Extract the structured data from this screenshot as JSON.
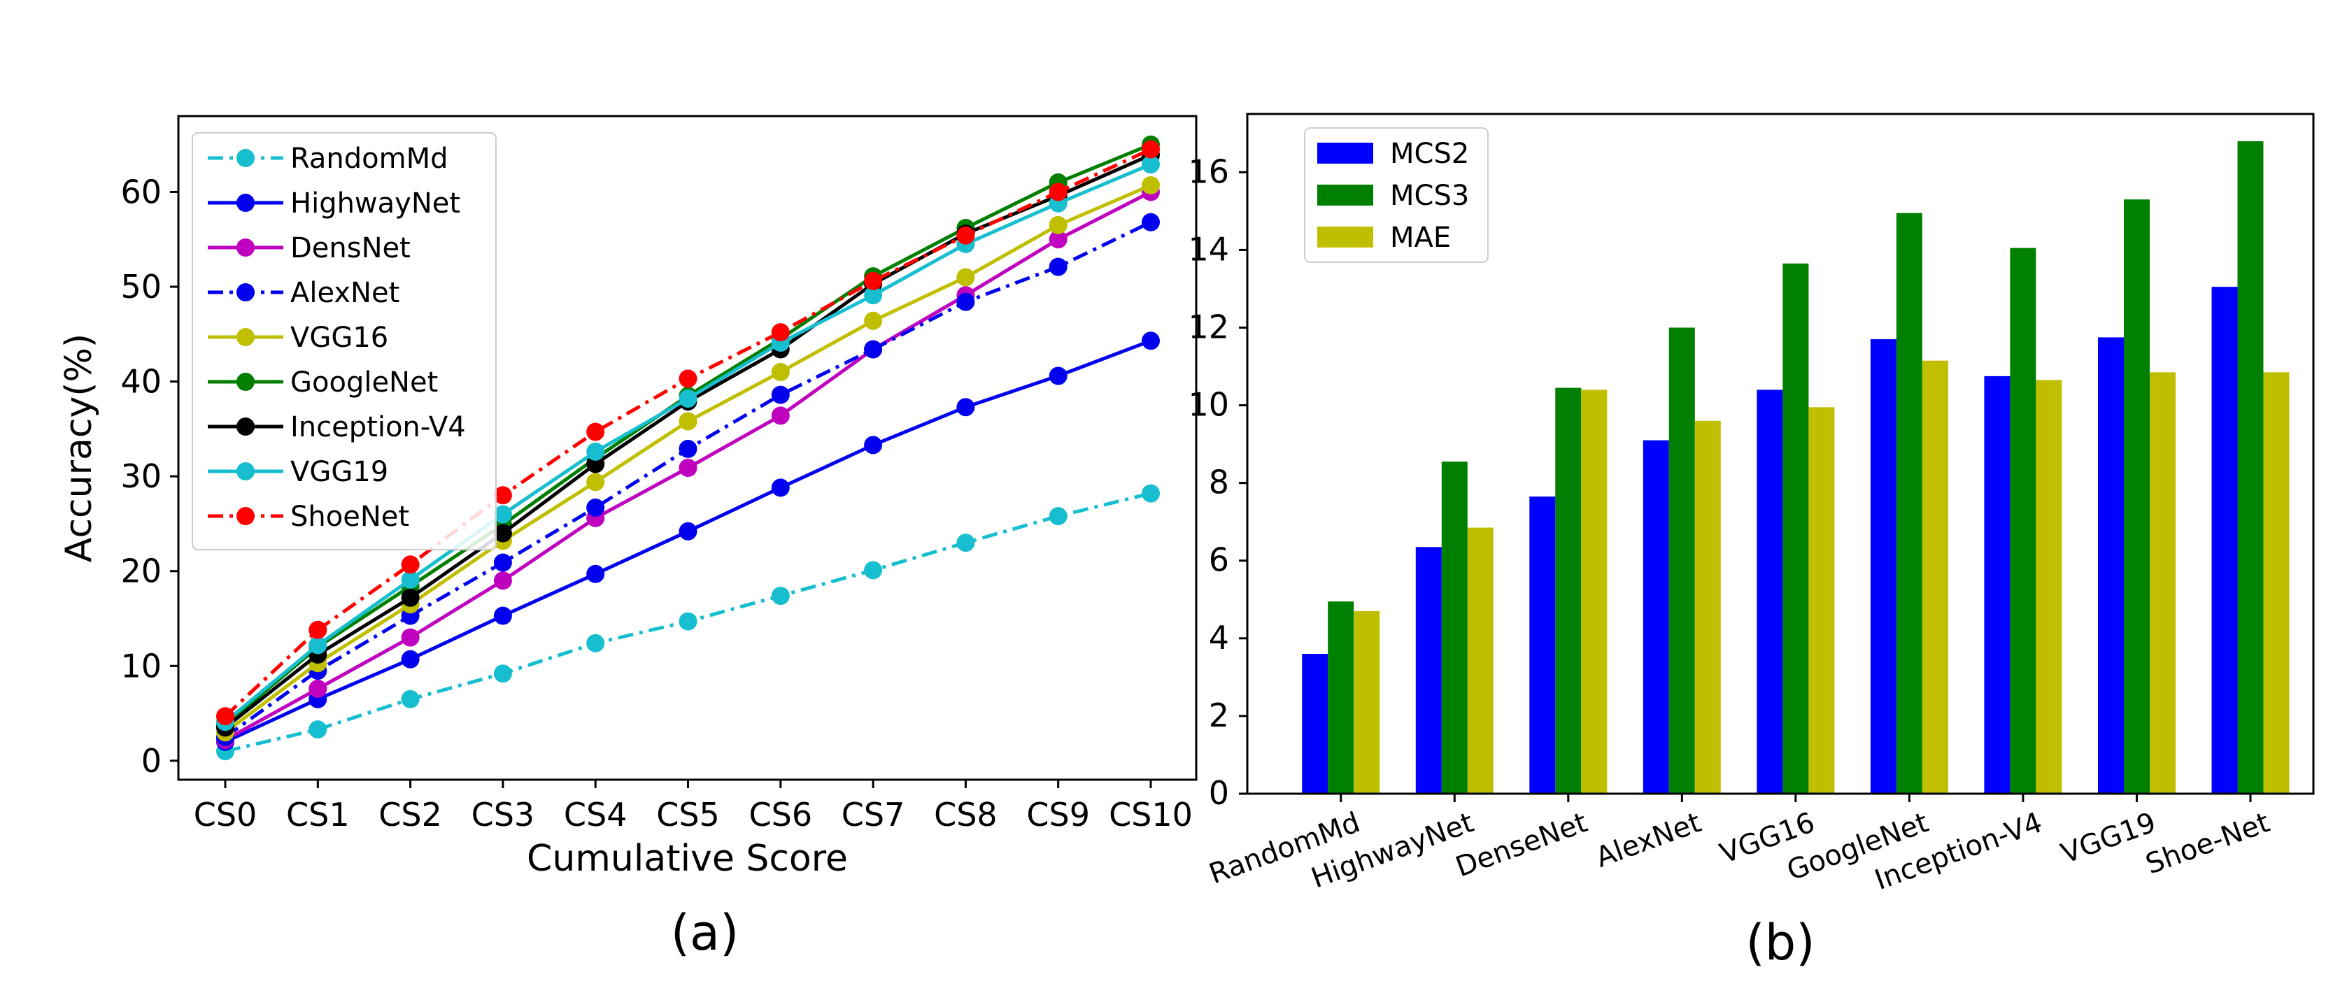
{
  "chart_data": [
    {
      "type": "line",
      "panel_label": "(a)",
      "title": "",
      "xlabel": "Cumulative Score",
      "ylabel": "Accuracy(%)",
      "categories": [
        "CS0",
        "CS1",
        "CS2",
        "CS3",
        "CS4",
        "CS5",
        "CS6",
        "CS7",
        "CS8",
        "CS9",
        "CS10"
      ],
      "ylim": [
        -2,
        68
      ],
      "yticks": [
        0,
        10,
        20,
        30,
        40,
        50,
        60
      ],
      "legend_position": "upper-left",
      "series": [
        {
          "name": "RandomMd",
          "color": "#17becf",
          "linestyle": "dashdot",
          "values": [
            1.0,
            3.3,
            6.5,
            9.2,
            12.4,
            14.7,
            17.4,
            20.1,
            23.0,
            25.8,
            28.2
          ]
        },
        {
          "name": "HighwayNet",
          "color": "#0000ee",
          "linestyle": "solid",
          "values": [
            2.0,
            6.5,
            10.7,
            15.3,
            19.7,
            24.2,
            28.8,
            33.3,
            37.3,
            40.6,
            44.3
          ]
        },
        {
          "name": "DensNet",
          "color": "#bf00bf",
          "linestyle": "solid",
          "values": [
            2.2,
            7.6,
            13.0,
            19.0,
            25.6,
            30.9,
            36.4,
            43.4,
            49.1,
            55.0,
            60.0
          ]
        },
        {
          "name": "AlexNet",
          "color": "#0000ee",
          "linestyle": "dashdot",
          "values": [
            2.5,
            9.5,
            15.3,
            20.9,
            26.7,
            32.9,
            38.6,
            43.4,
            48.4,
            52.1,
            56.8
          ]
        },
        {
          "name": "VGG16",
          "color": "#bfbf00",
          "linestyle": "solid",
          "values": [
            3.0,
            10.3,
            16.5,
            23.2,
            29.4,
            35.8,
            41.0,
            46.4,
            51.0,
            56.5,
            60.7
          ]
        },
        {
          "name": "GoogleNet",
          "color": "#007f00",
          "linestyle": "solid",
          "values": [
            3.8,
            12.0,
            18.4,
            24.9,
            31.9,
            38.5,
            44.5,
            51.1,
            56.2,
            61.0,
            65.0
          ]
        },
        {
          "name": "Inception-V4",
          "color": "#000000",
          "linestyle": "solid",
          "values": [
            3.5,
            11.2,
            17.2,
            24.0,
            31.3,
            37.9,
            43.4,
            50.3,
            55.6,
            59.6,
            63.9
          ]
        },
        {
          "name": "VGG19",
          "color": "#17becf",
          "linestyle": "solid",
          "values": [
            4.1,
            12.2,
            19.1,
            26.0,
            32.6,
            38.2,
            44.1,
            49.1,
            54.5,
            58.8,
            62.9
          ]
        },
        {
          "name": "ShoeNet",
          "color": "#ff0000",
          "linestyle": "dashdot",
          "values": [
            4.7,
            13.8,
            20.7,
            28.0,
            34.7,
            40.3,
            45.2,
            50.6,
            55.4,
            60.0,
            64.5
          ]
        }
      ]
    },
    {
      "type": "bar",
      "panel_label": "(b)",
      "title": "",
      "xlabel": "",
      "ylabel": "",
      "categories": [
        "RandomMd",
        "HighwayNet",
        "DenseNet",
        "AlexNet",
        "VGG16",
        "GoogleNet",
        "Inception-V4",
        "VGG19",
        "Shoe-Net"
      ],
      "ylim": [
        0,
        17.5
      ],
      "yticks": [
        0,
        2,
        4,
        6,
        8,
        10,
        12,
        14,
        16
      ],
      "legend_position": "upper-left",
      "series": [
        {
          "name": "MCS2",
          "color": "#0000ff",
          "values": [
            3.6,
            6.35,
            7.65,
            9.1,
            10.4,
            11.7,
            10.75,
            11.75,
            13.05
          ]
        },
        {
          "name": "MCS3",
          "color": "#008000",
          "values": [
            4.95,
            8.55,
            10.45,
            12.0,
            13.65,
            14.95,
            14.05,
            15.3,
            16.8
          ]
        },
        {
          "name": "MAE",
          "color": "#bfbf00",
          "values": [
            4.7,
            6.85,
            10.4,
            9.6,
            9.95,
            11.15,
            10.65,
            10.85,
            10.85
          ]
        }
      ]
    }
  ]
}
